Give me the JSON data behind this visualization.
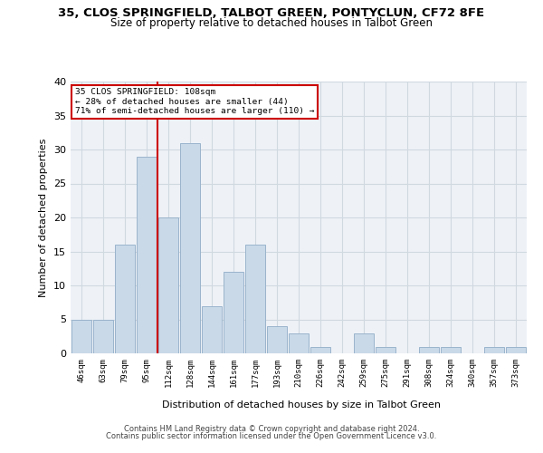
{
  "title_line1": "35, CLOS SPRINGFIELD, TALBOT GREEN, PONTYCLUN, CF72 8FE",
  "title_line2": "Size of property relative to detached houses in Talbot Green",
  "xlabel": "Distribution of detached houses by size in Talbot Green",
  "ylabel": "Number of detached properties",
  "annotation_line1": "35 CLOS SPRINGFIELD: 108sqm",
  "annotation_line2": "← 28% of detached houses are smaller (44)",
  "annotation_line3": "71% of semi-detached houses are larger (110) →",
  "bar_labels": [
    "46sqm",
    "63sqm",
    "79sqm",
    "95sqm",
    "112sqm",
    "128sqm",
    "144sqm",
    "161sqm",
    "177sqm",
    "193sqm",
    "210sqm",
    "226sqm",
    "242sqm",
    "259sqm",
    "275sqm",
    "291sqm",
    "308sqm",
    "324sqm",
    "340sqm",
    "357sqm",
    "373sqm"
  ],
  "bar_values": [
    5,
    5,
    16,
    29,
    20,
    31,
    7,
    12,
    16,
    4,
    3,
    1,
    0,
    3,
    1,
    0,
    1,
    1,
    0,
    1,
    1
  ],
  "bar_color": "#c9d9e8",
  "bar_edgecolor": "#9ab4cc",
  "redline_color": "#cc0000",
  "ylim": [
    0,
    40
  ],
  "yticks": [
    0,
    5,
    10,
    15,
    20,
    25,
    30,
    35,
    40
  ],
  "annotation_box_edgecolor": "#cc0000",
  "annotation_box_facecolor": "#ffffff",
  "grid_color": "#d0d8e0",
  "background_color": "#eef2f7",
  "footer_line1": "Contains HM Land Registry data © Crown copyright and database right 2024.",
  "footer_line2": "Contains public sector information licensed under the Open Government Licence v3.0."
}
